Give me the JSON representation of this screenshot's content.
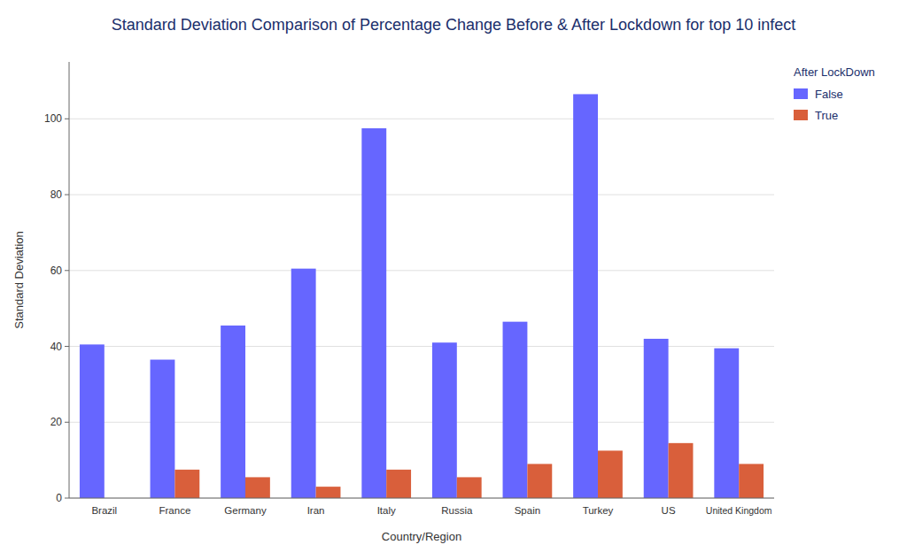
{
  "chart_data": {
    "type": "bar",
    "title": "Standard Deviation Comparison of Percentage Change Before & After Lockdown for top 10 infect",
    "xlabel": "Country/Region",
    "ylabel": "Standard Deviation",
    "categories": [
      "Brazil",
      "France",
      "Germany",
      "Iran",
      "Italy",
      "Russia",
      "Spain",
      "Turkey",
      "US",
      "United Kingdom"
    ],
    "series": [
      {
        "name": "False",
        "color": "#6666ff",
        "values": [
          40.5,
          36.5,
          45.5,
          60.5,
          97.5,
          41.0,
          46.5,
          106.5,
          42.0,
          39.5
        ]
      },
      {
        "name": "True",
        "color": "#d95f3b",
        "values": [
          0,
          7.5,
          5.5,
          3.0,
          7.5,
          5.5,
          9.0,
          12.5,
          14.5,
          9.0
        ]
      }
    ],
    "legend_title": "After LockDown",
    "legend": "right",
    "ylim": [
      0,
      115
    ],
    "yticks": [
      0,
      20,
      40,
      60,
      80,
      100
    ],
    "grid": true
  }
}
